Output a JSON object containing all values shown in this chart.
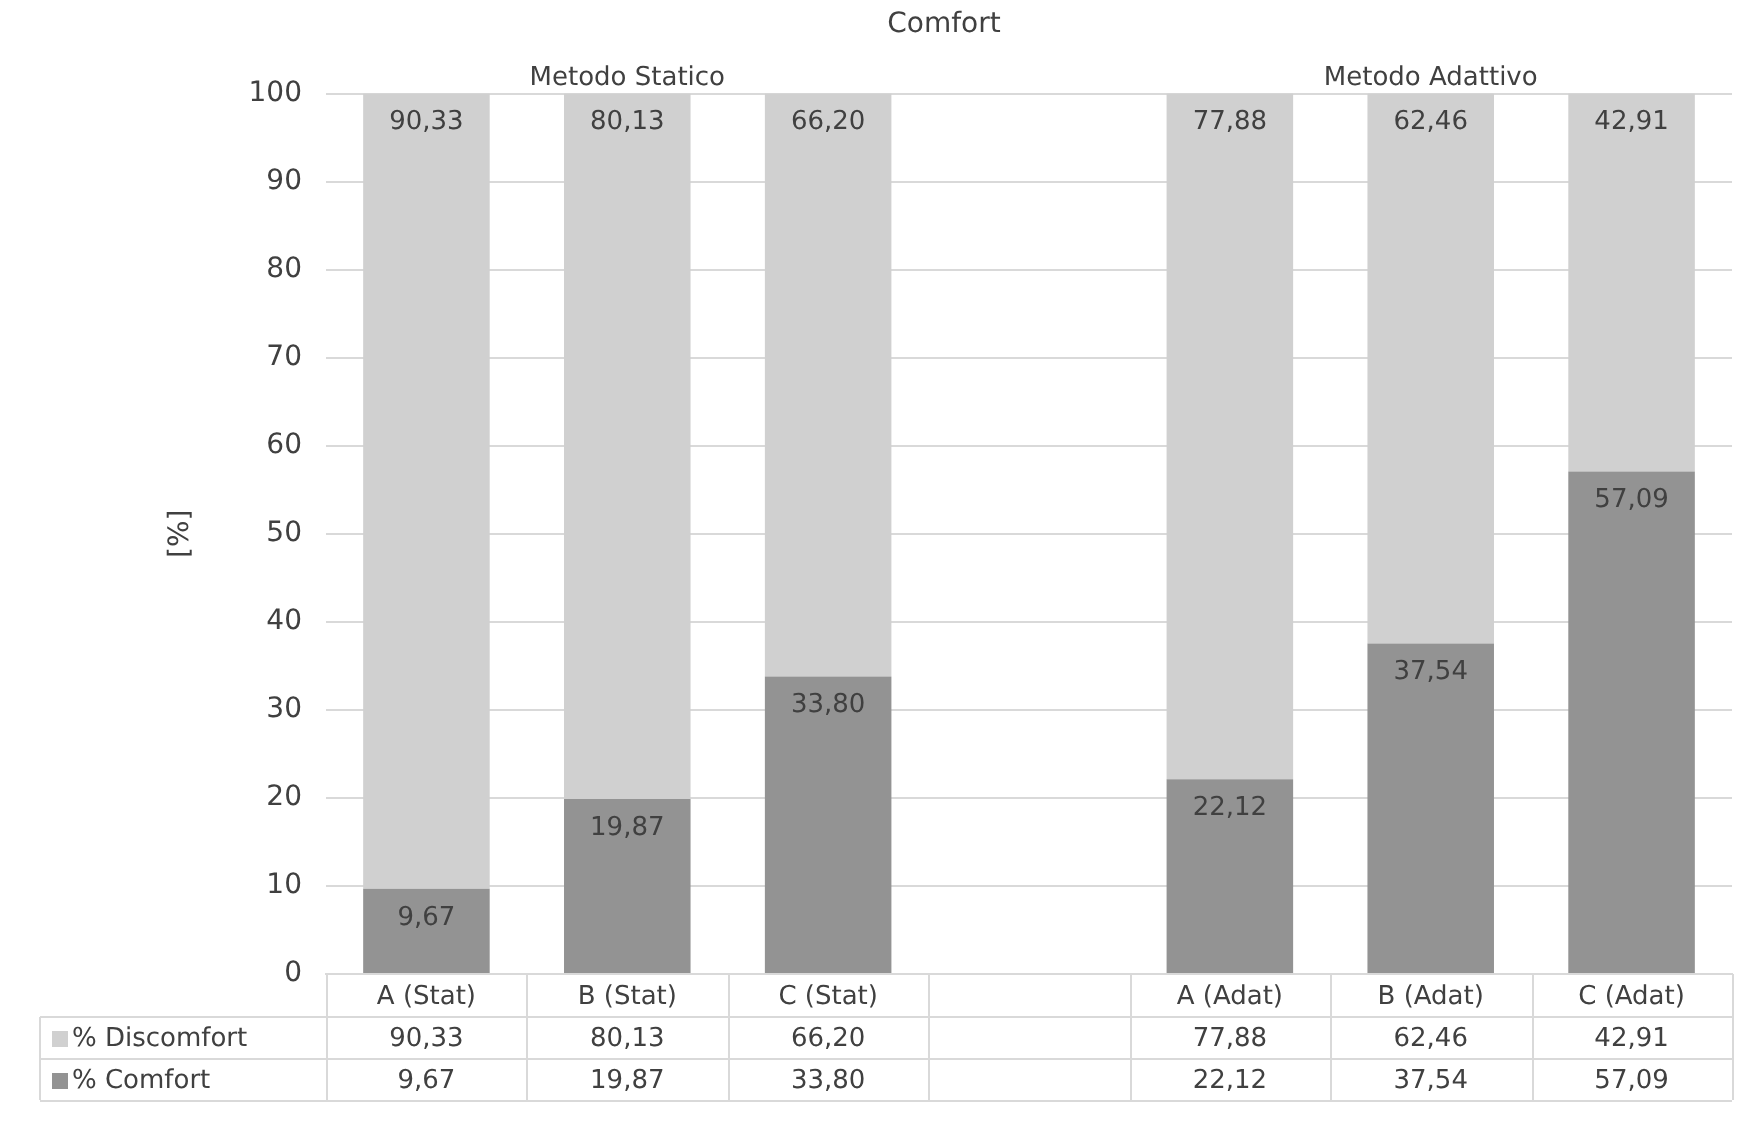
{
  "chart_data": {
    "type": "bar",
    "title": "Comfort",
    "ylabel": "[%]",
    "stacked": true,
    "categories": [
      "A (Stat)",
      "B (Stat)",
      "C (Stat)",
      null,
      "A (Adat)",
      "B (Adat)",
      "C (Adat)"
    ],
    "series": [
      {
        "name": "% Comfort",
        "color": "#939393",
        "values": [
          9.67,
          19.87,
          33.8,
          null,
          22.12,
          37.54,
          57.09
        ],
        "value_labels": [
          "9,67",
          "19,87",
          "33,80",
          null,
          "22,12",
          "37,54",
          "57,09"
        ]
      },
      {
        "name": "% Discomfort",
        "color": "#d0d0d0",
        "values": [
          90.33,
          80.13,
          66.2,
          null,
          77.88,
          62.46,
          42.91
        ],
        "value_labels": [
          "90,33",
          "80,13",
          "66,20",
          null,
          "77,88",
          "62,46",
          "42,91"
        ]
      }
    ],
    "annotations": [
      "Metodo Statico",
      "Metodo Adattivo"
    ],
    "ylim": [
      0,
      100
    ],
    "yticks": [
      0,
      10,
      20,
      30,
      40,
      50,
      60,
      70,
      80,
      90,
      100
    ],
    "grid": "y",
    "legend": "bottom"
  }
}
